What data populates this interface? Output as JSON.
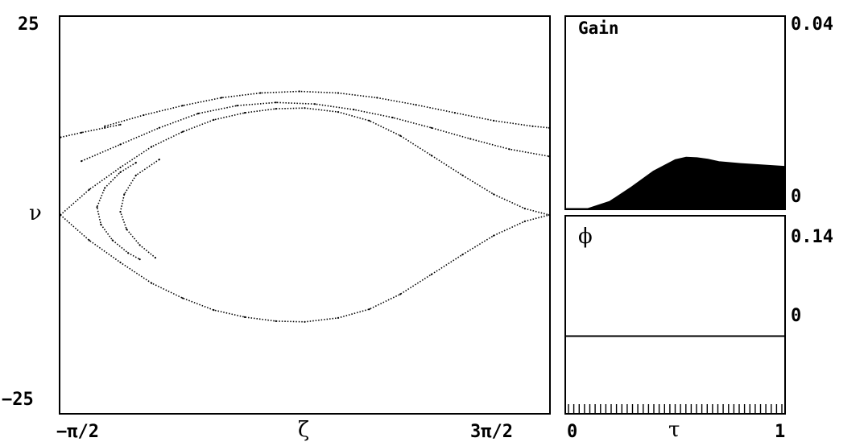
{
  "chart_data": [
    {
      "type": "scatter",
      "xlabel": "ζ",
      "ylabel": "ν",
      "x_ticks": [
        "−π/2",
        "3π/2"
      ],
      "y_ticks": [
        "25",
        "−25"
      ],
      "xlim": [
        -1.5708,
        4.7124
      ],
      "ylim": [
        -25,
        25
      ],
      "series": [
        {
          "values": [
            [
              -1.571,
              0
            ],
            [
              -1.2,
              -3.2
            ],
            [
              -0.8,
              -6.0
            ],
            [
              -0.4,
              -8.6
            ],
            [
              0,
              -10.5
            ],
            [
              0.4,
              -12.0
            ],
            [
              0.8,
              -12.9
            ],
            [
              1.2,
              -13.4
            ],
            [
              1.571,
              -13.5
            ],
            [
              2.0,
              -13.0
            ],
            [
              2.4,
              -11.9
            ],
            [
              2.8,
              -10.0
            ],
            [
              3.2,
              -7.5
            ],
            [
              3.6,
              -5.0
            ],
            [
              4.0,
              -2.6
            ],
            [
              4.4,
              -0.8
            ],
            [
              4.712,
              0
            ]
          ]
        },
        {
          "values": [
            [
              -1.571,
              0
            ],
            [
              -1.2,
              3.2
            ],
            [
              -0.8,
              6.0
            ],
            [
              -0.4,
              8.6
            ],
            [
              0,
              10.5
            ],
            [
              0.4,
              12.0
            ],
            [
              0.8,
              12.9
            ],
            [
              1.2,
              13.4
            ],
            [
              1.571,
              13.5
            ],
            [
              2.0,
              13.0
            ],
            [
              2.4,
              11.9
            ],
            [
              2.8,
              10.0
            ],
            [
              3.2,
              7.5
            ],
            [
              3.6,
              5.0
            ],
            [
              4.0,
              2.6
            ],
            [
              4.4,
              0.8
            ],
            [
              4.712,
              0
            ]
          ]
        },
        {
          "values": [
            [
              -1.3,
              6.8
            ],
            [
              -0.8,
              8.9
            ],
            [
              -0.3,
              11.0
            ],
            [
              0.2,
              12.8
            ],
            [
              0.7,
              13.8
            ],
            [
              1.2,
              14.2
            ],
            [
              1.7,
              14.0
            ],
            [
              2.2,
              13.3
            ],
            [
              2.7,
              12.3
            ],
            [
              3.2,
              11.0
            ],
            [
              3.7,
              9.6
            ],
            [
              4.2,
              8.3
            ],
            [
              4.712,
              7.4
            ]
          ]
        },
        {
          "values": [
            [
              -1.0,
              11.2
            ],
            [
              -0.5,
              12.6
            ],
            [
              0,
              13.8
            ],
            [
              0.5,
              14.8
            ],
            [
              1.0,
              15.4
            ],
            [
              1.5,
              15.6
            ],
            [
              2.0,
              15.4
            ],
            [
              2.5,
              14.8
            ],
            [
              3.0,
              13.9
            ],
            [
              3.5,
              12.9
            ],
            [
              4.0,
              11.9
            ],
            [
              4.5,
              11.2
            ],
            [
              4.712,
              11.0
            ]
          ]
        },
        {
          "values": [
            [
              -1.571,
              9.8
            ],
            [
              -1.3,
              10.4
            ],
            [
              -1.0,
              11.0
            ],
            [
              -0.8,
              11.4
            ]
          ]
        },
        {
          "values": [
            [
              -0.6,
              6.6
            ],
            [
              -0.8,
              5.4
            ],
            [
              -1.0,
              3.4
            ],
            [
              -1.1,
              1.0
            ],
            [
              -1.05,
              -1.2
            ],
            [
              -0.9,
              -3.2
            ],
            [
              -0.7,
              -4.8
            ],
            [
              -0.55,
              -5.6
            ]
          ]
        },
        {
          "values": [
            [
              -0.3,
              7.0
            ],
            [
              -0.6,
              5.0
            ],
            [
              -0.75,
              2.6
            ],
            [
              -0.8,
              0.4
            ],
            [
              -0.72,
              -1.8
            ],
            [
              -0.55,
              -3.8
            ],
            [
              -0.35,
              -5.4
            ]
          ]
        }
      ]
    },
    {
      "type": "area",
      "title": "Gain",
      "xlim": [
        0,
        1
      ],
      "ylim": [
        0,
        0.04
      ],
      "y_ticks": [
        "0.04",
        "0"
      ],
      "x": [
        0,
        0.1,
        0.2,
        0.3,
        0.4,
        0.5,
        0.55,
        0.6,
        0.65,
        0.7,
        0.8,
        0.9,
        1.0
      ],
      "values": [
        0,
        0,
        0.0015,
        0.0045,
        0.0078,
        0.0102,
        0.0107,
        0.0106,
        0.0103,
        0.0098,
        0.0094,
        0.0091,
        0.0088
      ]
    },
    {
      "type": "line",
      "title": "ϕ",
      "xlabel": "τ",
      "x_ticks": [
        "0",
        "1"
      ],
      "y_ticks": [
        "0.14",
        "0"
      ],
      "xlim": [
        0,
        1
      ],
      "ylim": [
        -0.09,
        0.14
      ],
      "x": [
        0,
        1
      ],
      "values": [
        0,
        0
      ]
    }
  ]
}
